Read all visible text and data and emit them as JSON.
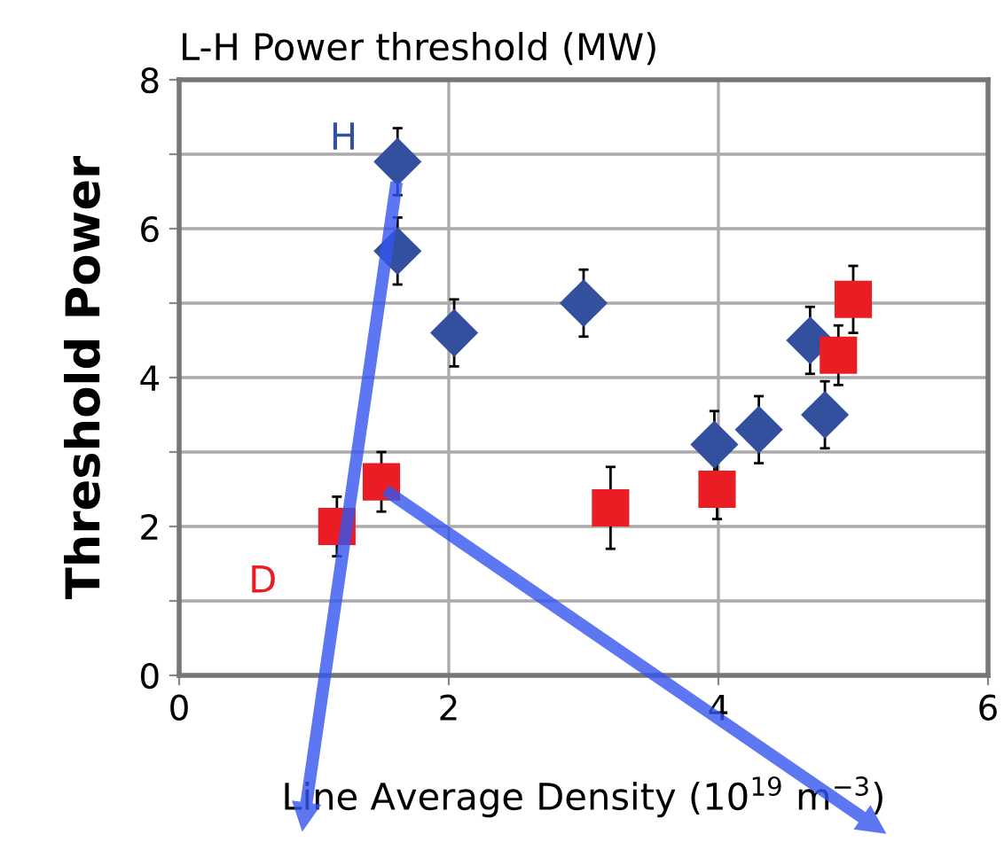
{
  "chart_data": {
    "type": "scatter",
    "title": "L-H Power threshold (MW)",
    "xlabel": "Line Average Density (10$^{19}$ m$^{−3}$)",
    "ylabel": "Threshold Power",
    "xlim": [
      0,
      6
    ],
    "xticks": [
      0,
      2,
      4,
      6
    ],
    "ylim": [
      0,
      8
    ],
    "yticks": [
      0,
      {
        "value": 1,
        "label": null
      },
      2,
      {
        "value": 3,
        "label": null
      },
      4,
      {
        "value": 5,
        "label": null
      },
      6,
      {
        "value": 7,
        "label": null
      },
      8
    ],
    "grid": true,
    "series": [
      {
        "name": "H",
        "color": "#33509e",
        "marker": "diamond",
        "x": [
          1.62,
          1.62,
          2.04,
          3.0,
          3.97,
          4.3,
          4.68,
          4.79
        ],
        "values": [
          6.9,
          5.7,
          4.6,
          5.0,
          3.1,
          3.3,
          4.5,
          3.5
        ],
        "errors": [
          0.45,
          0.45,
          0.45,
          0.45,
          0.45,
          0.45,
          0.45,
          0.45
        ]
      },
      {
        "name": "D",
        "color": "#ea1c24",
        "marker": "square",
        "x": [
          1.17,
          1.5,
          3.2,
          3.99,
          4.89,
          5.0
        ],
        "values": [
          2.0,
          2.6,
          2.25,
          2.5,
          4.3,
          5.05
        ],
        "errors": [
          0.4,
          0.4,
          0.55,
          0.4,
          0.4,
          0.45
        ]
      }
    ]
  }
}
